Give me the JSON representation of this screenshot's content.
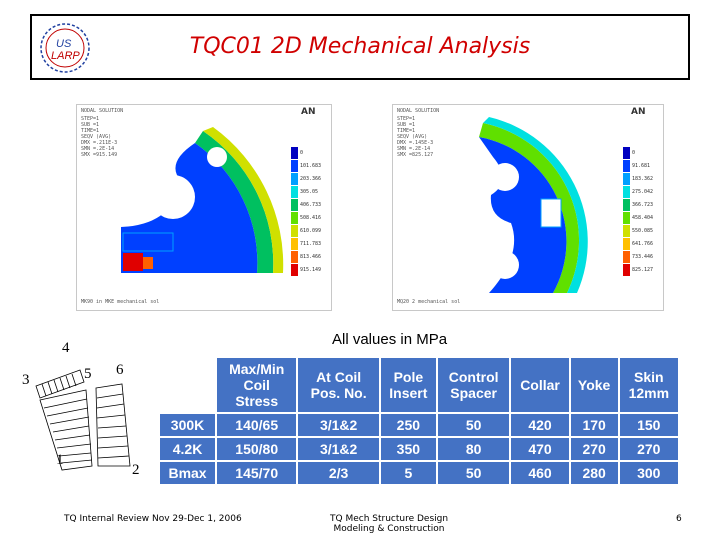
{
  "title": "TQC01 2D Mechanical Analysis",
  "logo": {
    "line1": "US",
    "line2": "LARP"
  },
  "left_plot": {
    "brand": "AN",
    "header": "NODAL SOLUTION",
    "info": [
      "STEP=1",
      "SUB =1",
      "TIME=1",
      "SEQV (AVG)",
      "DMX =.211E-3",
      "SMN =.2E-14",
      "SMX =915.149"
    ],
    "legend": [
      "0",
      "101.683",
      "203.366",
      "305.05",
      "406.733",
      "508.416",
      "610.099",
      "711.783",
      "813.466",
      "915.149"
    ],
    "legend_colors": [
      "#0000c0",
      "#0040ff",
      "#00a0ff",
      "#00e0e0",
      "#00c060",
      "#60e000",
      "#d0e000",
      "#ffc000",
      "#ff6000",
      "#e00000"
    ],
    "caption": "MK90 in MKE mechanical sol"
  },
  "right_plot": {
    "brand": "AN",
    "header": "NODAL SOLUTION",
    "info": [
      "STEP=1",
      "SUB =1",
      "TIME=1",
      "SEQV (AVG)",
      "DMX =.145E-3",
      "SMN =.2E-14",
      "SMX =825.127"
    ],
    "legend": [
      "0",
      "91.681",
      "183.362",
      "275.042",
      "366.723",
      "458.404",
      "550.085",
      "641.766",
      "733.446",
      "825.127"
    ],
    "legend_colors": [
      "#0000c0",
      "#0040ff",
      "#00a0ff",
      "#00e0e0",
      "#00c060",
      "#60e000",
      "#d0e000",
      "#ffc000",
      "#ff6000",
      "#e00000"
    ],
    "caption": "MQ20 2 mechanical sol"
  },
  "values_note": "All values in MPa",
  "coil_labels": {
    "n1": "1",
    "n2": "2",
    "n3": "3",
    "n4": "4",
    "n5": "5",
    "n6": "6"
  },
  "table": {
    "headers": [
      [
        "Max/Min",
        "Coil",
        "Stress"
      ],
      [
        "At Coil",
        "Pos. No."
      ],
      [
        "Pole",
        "Insert"
      ],
      [
        "Control",
        "Spacer"
      ],
      [
        "Collar"
      ],
      [
        "Yoke"
      ],
      [
        "Skin",
        "12mm"
      ]
    ],
    "rows": [
      {
        "label": "300K",
        "cells": [
          "140/65",
          "3/1&2",
          "250",
          "50",
          "420",
          "170",
          "150"
        ]
      },
      {
        "label": "4.2K",
        "cells": [
          "150/80",
          "3/1&2",
          "350",
          "80",
          "470",
          "270",
          "270"
        ]
      },
      {
        "label": "Bmax",
        "cells": [
          "145/70",
          "2/3",
          "5",
          "50",
          "460",
          "280",
          "300"
        ]
      }
    ]
  },
  "footer": {
    "left": "TQ Internal Review Nov 29-Dec 1, 2006",
    "center_line1": "TQ Mech Structure Design",
    "center_line2": "Modeling & Construction",
    "page": "6"
  },
  "colors": {
    "title": "#d00000",
    "table_fill": "#4472c4"
  }
}
